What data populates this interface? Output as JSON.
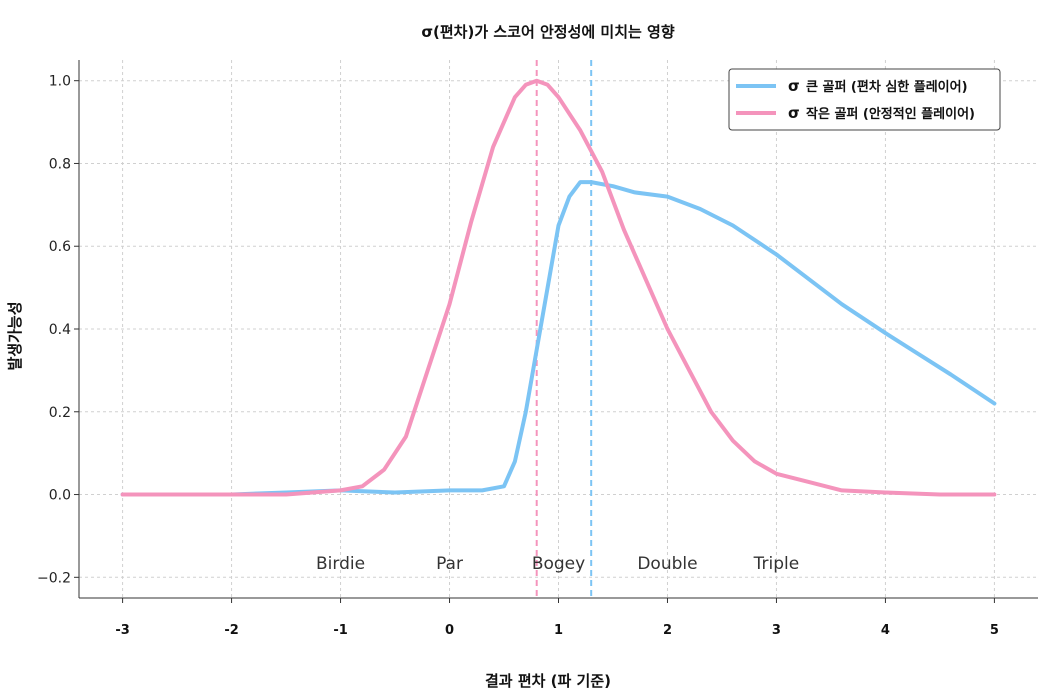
{
  "chart_data": {
    "type": "line",
    "title": "σ(편차)가 스코어 안정성에 미치는 영향",
    "xlabel": "결과 편차 (파 기준)",
    "ylabel": "발생가능성",
    "xlim": [
      -3.4,
      5.4
    ],
    "ylim": [
      -0.25,
      1.05
    ],
    "xticks": [
      -3,
      -2,
      -1,
      0,
      1,
      2,
      3,
      4,
      5
    ],
    "xtick_labels": [
      "-3",
      "-2",
      "-1",
      "0",
      "1",
      "2",
      "3",
      "4",
      "5"
    ],
    "yticks": [
      -0.2,
      0.0,
      0.2,
      0.4,
      0.6,
      0.8,
      1.0
    ],
    "ytick_labels": [
      "−0.2",
      "0.0",
      "0.2",
      "0.4",
      "0.6",
      "0.8",
      "1.0"
    ],
    "grid": true,
    "legend_position": "top-right",
    "series": [
      {
        "name": "σ 큰 골퍼 (편차 심한 플레이어)",
        "symbol": "σ",
        "label": "큰 골퍼 (편차 심한 플레이어)",
        "color": "#7cc4f4",
        "x": [
          -3,
          -2.5,
          -2,
          -1.5,
          -1,
          -0.5,
          0,
          0.3,
          0.5,
          0.6,
          0.7,
          0.8,
          0.9,
          1.0,
          1.1,
          1.2,
          1.3,
          1.5,
          1.7,
          2.0,
          2.3,
          2.6,
          3.0,
          3.3,
          3.6,
          4.0,
          4.3,
          4.6,
          5.0
        ],
        "y": [
          0.0,
          0.0,
          0.0,
          0.005,
          0.01,
          0.005,
          0.01,
          0.01,
          0.02,
          0.08,
          0.2,
          0.35,
          0.5,
          0.65,
          0.72,
          0.755,
          0.755,
          0.745,
          0.73,
          0.72,
          0.69,
          0.65,
          0.58,
          0.52,
          0.46,
          0.39,
          0.34,
          0.29,
          0.22
        ]
      },
      {
        "name": "σ 작은 골퍼 (안정적인 플레이어)",
        "symbol": "σ",
        "label": "작은 골퍼 (안정적인 플레이어)",
        "color": "#f494bc",
        "x": [
          -3,
          -2.5,
          -2,
          -1.5,
          -1,
          -0.8,
          -0.6,
          -0.4,
          -0.2,
          0,
          0.2,
          0.4,
          0.6,
          0.7,
          0.8,
          0.9,
          1.0,
          1.1,
          1.2,
          1.4,
          1.6,
          1.8,
          2.0,
          2.2,
          2.4,
          2.6,
          2.8,
          3.0,
          3.3,
          3.6,
          4.0,
          4.5,
          5.0
        ],
        "y": [
          0.0,
          0.0,
          0.0,
          0.0,
          0.01,
          0.02,
          0.06,
          0.14,
          0.3,
          0.46,
          0.66,
          0.84,
          0.96,
          0.99,
          1.0,
          0.99,
          0.96,
          0.92,
          0.88,
          0.78,
          0.64,
          0.52,
          0.4,
          0.3,
          0.2,
          0.13,
          0.08,
          0.05,
          0.03,
          0.01,
          0.005,
          0.0,
          0.0
        ]
      }
    ],
    "vlines": [
      {
        "x": 0.8,
        "color": "#f494bc"
      },
      {
        "x": 1.3,
        "color": "#7cc4f4"
      }
    ],
    "annotations": [
      {
        "text": "Birdie",
        "x": -1.0,
        "y": -0.165
      },
      {
        "text": "Par",
        "x": 0.0,
        "y": -0.165
      },
      {
        "text": "Bogey",
        "x": 1.0,
        "y": -0.165
      },
      {
        "text": "Double",
        "x": 2.0,
        "y": -0.165
      },
      {
        "text": "Triple",
        "x": 3.0,
        "y": -0.165
      }
    ]
  }
}
